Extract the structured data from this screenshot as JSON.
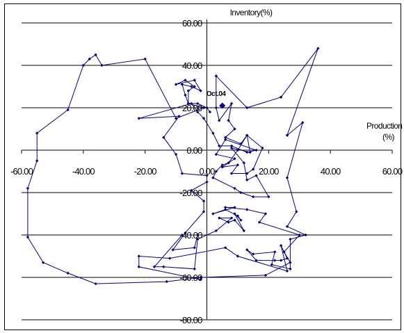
{
  "chart_data": {
    "type": "scatter",
    "xlabel": "Production\n(%)",
    "ylabel": "Inventory(%)",
    "xlim": [
      -60,
      60
    ],
    "ylim": [
      -80,
      60
    ],
    "x_ticks": [
      -60,
      -40,
      -20,
      0,
      20,
      40,
      60
    ],
    "y_ticks": [
      -80,
      -60,
      -40,
      -20,
      0,
      20,
      40,
      60
    ],
    "x_tick_labels": [
      "-60.00",
      "-40.00",
      "-20.00",
      "0.00",
      "20.00",
      "40.00",
      "60.00"
    ],
    "y_tick_labels": [
      "-80.00",
      "-60.00",
      "-40.00",
      "-20.00",
      "0.00",
      "20.00",
      "40.00",
      "60.00"
    ],
    "grid": "horizontal",
    "legend": "none",
    "series": [
      {
        "color": "#000080",
        "marker": "diamond",
        "points": [
          [
            1,
            18
          ],
          [
            0,
            20
          ],
          [
            -3,
            22
          ],
          [
            -6,
            22
          ],
          [
            -6,
            28
          ],
          [
            -4,
            30
          ],
          [
            -7,
            33
          ],
          [
            -10,
            31
          ],
          [
            -4,
            33
          ],
          [
            -2,
            28
          ],
          [
            -5,
            30
          ],
          [
            -8,
            31
          ],
          [
            -7,
            26
          ],
          [
            -6,
            22
          ],
          [
            -1,
            20
          ],
          [
            -10,
            15
          ],
          [
            -20,
            43
          ],
          [
            -34,
            40
          ],
          [
            -36,
            45
          ],
          [
            -38,
            43
          ],
          [
            -40,
            40
          ],
          [
            -45,
            19
          ],
          [
            -55,
            8
          ],
          [
            -55,
            -5
          ],
          [
            -58,
            -18
          ],
          [
            -58,
            -41
          ],
          [
            -53,
            -53
          ],
          [
            -45,
            -58
          ],
          [
            -36,
            -63
          ],
          [
            -13,
            -62
          ],
          [
            -2,
            -60
          ],
          [
            19,
            -59
          ],
          [
            27,
            -53
          ],
          [
            25,
            -48
          ],
          [
            30,
            -40
          ],
          [
            17,
            -34
          ],
          [
            19,
            -30
          ],
          [
            13,
            -28
          ],
          [
            6,
            -27
          ],
          [
            9,
            -27
          ],
          [
            2,
            -30
          ],
          [
            6,
            -28
          ],
          [
            10,
            -31
          ],
          [
            11,
            -33
          ],
          [
            9,
            -30
          ],
          [
            12,
            -38
          ],
          [
            9,
            -33
          ],
          [
            7,
            -34
          ],
          [
            4,
            -32
          ],
          [
            8,
            -32
          ],
          [
            3,
            -38
          ],
          [
            -3,
            -42
          ],
          [
            -4,
            -56
          ],
          [
            -14,
            -55
          ],
          [
            -17,
            -55
          ],
          [
            -8,
            -40
          ],
          [
            -3,
            -40
          ],
          [
            -4,
            -46
          ],
          [
            -11,
            -47
          ],
          [
            -7,
            -39
          ],
          [
            -1,
            -29
          ],
          [
            -1,
            -24
          ],
          [
            -5,
            -19
          ],
          [
            0,
            -15
          ],
          [
            0,
            -12
          ],
          [
            -8,
            -11
          ],
          [
            -10,
            -2
          ],
          [
            -14,
            6
          ],
          [
            -9,
            16
          ],
          [
            -22,
            15
          ],
          [
            -5,
            22
          ],
          [
            -3,
            18
          ],
          [
            -1,
            15
          ],
          [
            2,
            8
          ],
          [
            4,
            2
          ],
          [
            8,
            2
          ],
          [
            13,
            -1
          ],
          [
            16,
            0
          ],
          [
            6,
            5
          ],
          [
            3,
            -2
          ],
          [
            9,
            -4
          ],
          [
            5,
            -8
          ],
          [
            10,
            -7
          ],
          [
            8,
            -11
          ],
          [
            13,
            -11
          ],
          [
            15,
            -9
          ],
          [
            18,
            1
          ],
          [
            13,
            7
          ],
          [
            14,
            -1
          ],
          [
            8,
            1
          ],
          [
            12,
            -6
          ],
          [
            13,
            -14
          ],
          [
            16,
            -12
          ],
          [
            20,
            -22
          ],
          [
            15,
            -22
          ],
          [
            11,
            -20
          ],
          [
            9,
            -18
          ],
          [
            2,
            -13
          ],
          [
            3,
            -10
          ],
          [
            5,
            -7
          ],
          [
            7,
            -6
          ],
          [
            10,
            0
          ],
          [
            13,
            7
          ],
          [
            11,
            3
          ],
          [
            6,
            6
          ],
          [
            9,
            10
          ],
          [
            7,
            14
          ],
          [
            8,
            22
          ],
          [
            4,
            14
          ],
          [
            3,
            20
          ],
          [
            3,
            35
          ],
          [
            13,
            20
          ],
          [
            24,
            25
          ],
          [
            36,
            48
          ],
          [
            26,
            7
          ],
          [
            31,
            13
          ],
          [
            26,
            -13
          ],
          [
            29,
            -29
          ],
          [
            26,
            -36
          ],
          [
            32,
            -40
          ],
          [
            27,
            -42
          ],
          [
            27,
            -56
          ],
          [
            21,
            -54
          ],
          [
            22,
            -48
          ],
          [
            15,
            -49
          ],
          [
            13,
            -47
          ],
          [
            16,
            -52
          ],
          [
            22,
            -52
          ],
          [
            24,
            -52
          ],
          [
            26,
            -51
          ],
          [
            24,
            -45
          ],
          [
            26,
            -57
          ],
          [
            10,
            -50
          ],
          [
            6,
            -46
          ],
          [
            -12,
            -51
          ],
          [
            -22,
            -50
          ],
          [
            -22,
            -55
          ],
          [
            -2,
            -61
          ]
        ]
      }
    ],
    "annotations": [
      {
        "label": "Oct.04",
        "point": [
          5,
          21
        ]
      }
    ]
  }
}
